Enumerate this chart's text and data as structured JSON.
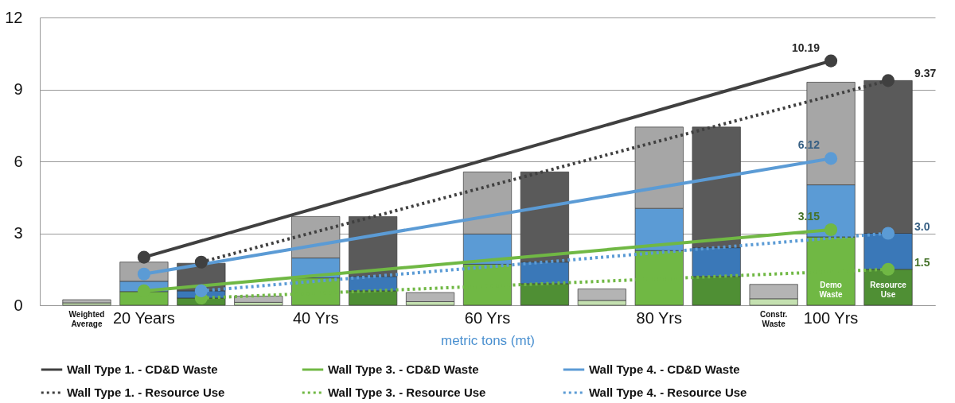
{
  "chart_data": {
    "type": "bar",
    "xlabel": "metric tons (mt)",
    "categories": [
      "Weighted Average",
      "20 Years",
      null,
      null,
      "40 Yrs",
      null,
      null,
      "60 Yrs",
      null,
      null,
      "80 Yrs",
      null,
      "Constr. Waste",
      "100 Yrs",
      null
    ],
    "series": [
      {
        "values": [
          0.1,
          0.57,
          0.3,
          0.12,
          1.14,
          0.6,
          0.15,
          1.71,
          0.9,
          0.2,
          2.28,
          1.2,
          0.27,
          2.85,
          1.5
        ],
        "colors": [
          "#c4e0b0",
          "#70b844",
          "#4f8f34",
          "#c4e0b0",
          "#70b844",
          "#4f8f34",
          "#c4e0b0",
          "#70b844",
          "#4f8f34",
          "#c4e0b0",
          "#70b844",
          "#4f8f34",
          "#c4e0b0",
          "#70b844",
          "#4f8f34"
        ]
      },
      {
        "values": [
          null,
          0.43,
          0.3,
          null,
          0.83,
          0.6,
          null,
          1.26,
          0.9,
          null,
          1.76,
          1.2,
          null,
          2.17,
          1.5
        ],
        "colors": [
          null,
          "#5b9bd5",
          "#3a78b8",
          null,
          "#5b9bd5",
          "#3a78b8",
          null,
          "#5b9bd5",
          "#3a78b8",
          null,
          "#5b9bd5",
          "#3a78b8",
          null,
          "#5b9bd5",
          "#3a78b8"
        ]
      },
      {
        "values": [
          0.13,
          0.8,
          1.15,
          0.26,
          1.73,
          2.5,
          0.38,
          2.59,
          3.76,
          0.48,
          3.39,
          5.03,
          0.6,
          4.28,
          6.37
        ],
        "colors": [
          "#b4b4b4",
          "#a6a6a6",
          "#5a5a5a",
          "#b4b4b4",
          "#a6a6a6",
          "#5a5a5a",
          "#b4b4b4",
          "#a6a6a6",
          "#5a5a5a",
          "#b4b4b4",
          "#a6a6a6",
          "#5a5a5a",
          "#b4b4b4",
          "#a6a6a6",
          "#5a5a5a"
        ]
      },
      {
        "type": "line",
        "name": "Wall Type 1. - CD&D Waste",
        "color": "#404040",
        "line_style": "solid",
        "values": [
          null,
          2.0,
          null,
          null,
          null,
          null,
          null,
          null,
          null,
          null,
          null,
          null,
          null,
          10.19,
          null
        ],
        "value_labels": [
          null,
          null,
          null,
          null,
          null,
          null,
          null,
          null,
          null,
          null,
          null,
          null,
          null,
          "10.19",
          null
        ]
      },
      {
        "type": "line",
        "name": "Wall Type 3. - CD&D Waste",
        "color": "#70b844",
        "line_style": "solid",
        "values": [
          null,
          0.6,
          null,
          null,
          null,
          null,
          null,
          null,
          null,
          null,
          null,
          null,
          null,
          3.15,
          null
        ],
        "value_labels": [
          null,
          null,
          null,
          null,
          null,
          null,
          null,
          null,
          null,
          null,
          null,
          null,
          null,
          "3.15",
          null
        ]
      },
      {
        "type": "line",
        "name": "Wall Type 4. - CD&D Waste",
        "color": "#5b9bd5",
        "line_style": "solid",
        "values": [
          null,
          1.3,
          null,
          null,
          null,
          null,
          null,
          null,
          null,
          null,
          null,
          null,
          null,
          6.12,
          null
        ],
        "value_labels": [
          null,
          null,
          null,
          null,
          null,
          null,
          null,
          null,
          null,
          null,
          null,
          null,
          null,
          "6.12",
          null
        ]
      },
      {
        "type": "line",
        "name": "Wall Type 1. - Resource Use",
        "color": "#404040",
        "line_style": "dotted",
        "values": [
          null,
          null,
          1.8,
          null,
          null,
          null,
          null,
          null,
          null,
          null,
          null,
          null,
          null,
          null,
          9.37
        ],
        "value_labels": [
          null,
          null,
          null,
          null,
          null,
          null,
          null,
          null,
          null,
          null,
          null,
          null,
          null,
          null,
          "9.37"
        ]
      },
      {
        "type": "line",
        "name": "Wall Type 3. - Resource Use",
        "color": "#70b844",
        "line_style": "dotted",
        "values": [
          null,
          null,
          0.3,
          null,
          null,
          null,
          null,
          null,
          null,
          null,
          null,
          null,
          null,
          null,
          1.5
        ],
        "value_labels": [
          null,
          null,
          null,
          null,
          null,
          null,
          null,
          null,
          null,
          null,
          null,
          null,
          null,
          null,
          "1.5"
        ]
      },
      {
        "type": "line",
        "name": "Wall Type 4. - Resource Use",
        "color": "#5b9bd5",
        "line_style": "dotted",
        "values": [
          null,
          null,
          0.6,
          null,
          null,
          null,
          null,
          null,
          null,
          null,
          null,
          null,
          null,
          null,
          3.0
        ],
        "value_labels": [
          null,
          null,
          null,
          null,
          null,
          null,
          null,
          null,
          null,
          null,
          null,
          null,
          null,
          null,
          "3.0"
        ]
      }
    ],
    "annotations": [
      "Demo Waste",
      "Resource Use"
    ],
    "stacked": true,
    "ylim": [
      0,
      12
    ],
    "yticks": [
      0,
      3,
      6,
      9,
      12
    ],
    "grid": "y",
    "legend": "bottom",
    "marker": "circle"
  }
}
